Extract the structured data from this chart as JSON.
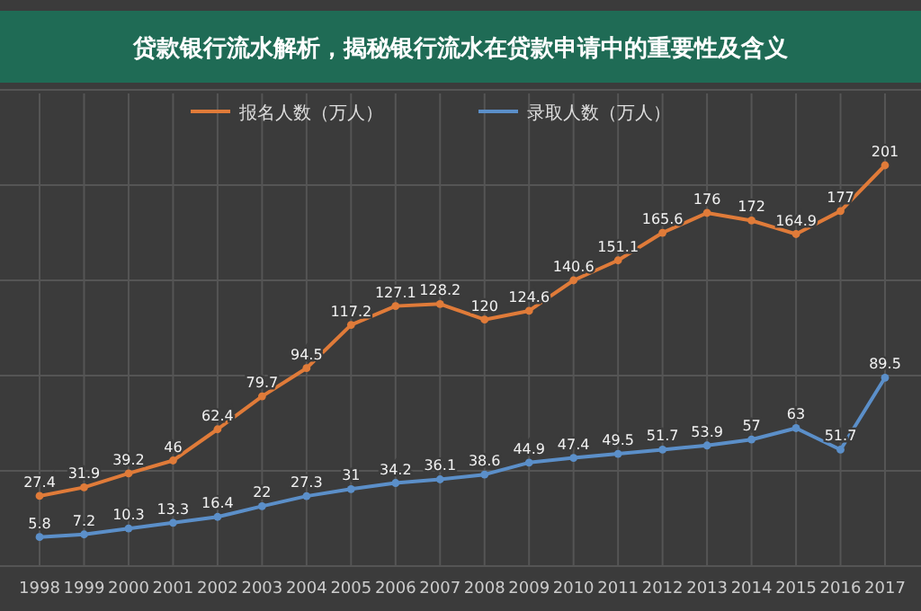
{
  "chart_data": {
    "type": "line",
    "title": "贷款银行流水解析，揭秘银行流水在贷款申请中的重要性及含义",
    "categories": [
      "1998",
      "1999",
      "2000",
      "2001",
      "2002",
      "2003",
      "2004",
      "2005",
      "2006",
      "2007",
      "2008",
      "2009",
      "2010",
      "2011",
      "2012",
      "2013",
      "2014",
      "2015",
      "2016",
      "2017"
    ],
    "series": [
      {
        "name": "报名人数（万人）",
        "color": "#e07b39",
        "values": [
          27.4,
          31.9,
          39.2,
          46,
          62.4,
          79.7,
          94.5,
          117.2,
          127.1,
          128.2,
          120,
          124.6,
          140.6,
          151.1,
          165.6,
          176,
          172,
          164.9,
          177,
          201
        ]
      },
      {
        "name": "录取人数（万人）",
        "color": "#5b8fc9",
        "values": [
          5.8,
          7.2,
          10.3,
          13.3,
          16.4,
          22,
          27.3,
          31,
          34.2,
          36.1,
          38.6,
          44.9,
          47.4,
          49.5,
          51.7,
          53.9,
          57,
          63,
          51.7,
          89.5
        ]
      }
    ],
    "data_labels": true,
    "grid": true,
    "legend": "top",
    "marker": "circle",
    "line_style": "solid"
  }
}
